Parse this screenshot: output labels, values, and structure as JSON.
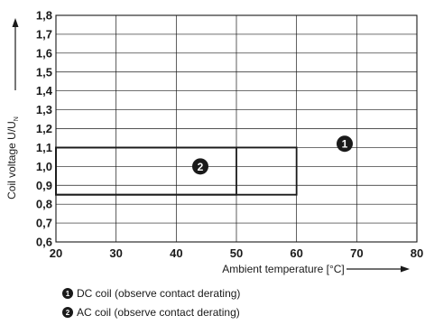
{
  "chart_data": {
    "type": "line",
    "xlabel": "Ambient temperature [°C]",
    "ylabel": "Coil voltage U/U",
    "ylabel_subscript": "N",
    "xlim": [
      20,
      80
    ],
    "ylim": [
      0.6,
      1.8
    ],
    "x_ticks": [
      20,
      30,
      40,
      50,
      60,
      70,
      80
    ],
    "x_tick_labels": [
      "20",
      "30",
      "40",
      "50",
      "60",
      "70",
      "80"
    ],
    "y_ticks": [
      0.6,
      0.7,
      0.8,
      0.9,
      1.0,
      1.1,
      1.2,
      1.3,
      1.4,
      1.5,
      1.6,
      1.7,
      1.8
    ],
    "y_tick_labels": [
      "0,6",
      "0,7",
      "0,8",
      "0,9",
      "1,0",
      "1,1",
      "1,2",
      "1,3",
      "1,4",
      "1,5",
      "1,6",
      "1,7",
      "1,8"
    ],
    "grid": true,
    "series": [
      {
        "marker": "1",
        "name": "DC coil (observe contact derating)",
        "x": [
          20,
          60,
          60,
          20
        ],
        "y": [
          1.1,
          1.1,
          0.85,
          0.85
        ],
        "marker_position": [
          68,
          1.12
        ]
      },
      {
        "marker": "2",
        "name": "AC coil (observe contact derating)",
        "x": [
          20,
          50,
          50,
          20
        ],
        "y": [
          1.1,
          1.1,
          0.85,
          0.85
        ],
        "marker_position": [
          44,
          1.0
        ]
      }
    ],
    "legend": [
      {
        "marker": "1",
        "label": "DC coil (observe contact derating)"
      },
      {
        "marker": "2",
        "label": "AC coil (observe contact derating)"
      }
    ],
    "colors": {
      "line": "#1a1a1a",
      "grid": "#1a1a1a",
      "marker_fill": "#1a1a1a",
      "marker_text": "#ffffff"
    }
  }
}
